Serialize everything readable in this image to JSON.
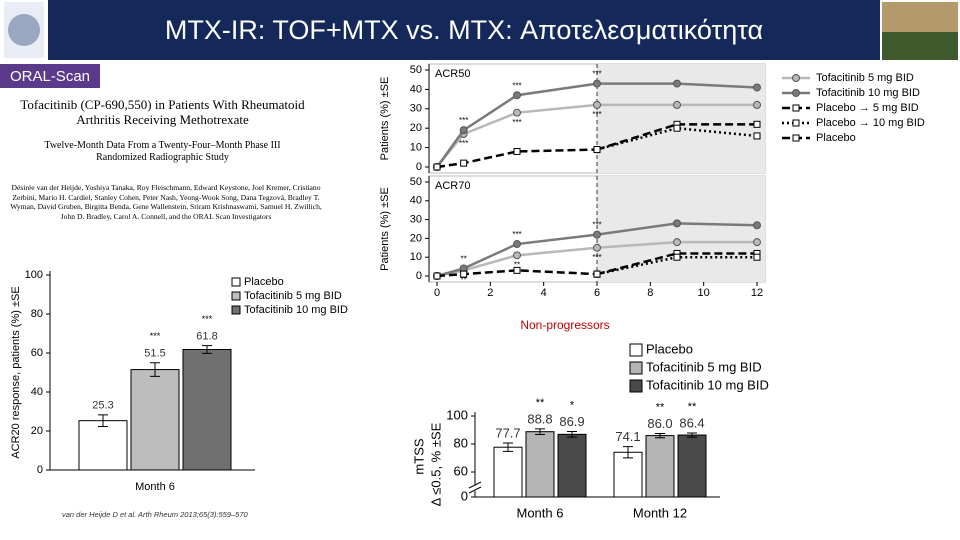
{
  "header": {
    "title": "MTX-IR: TOF+MTX vs. MTX: Αποτελεσματικότητα",
    "tag": "ORAL-Scan"
  },
  "paper": {
    "title": "Tofacitinib (CP-690,550) in Patients With Rheumatoid Arthritis Receiving Methotrexate",
    "subtitle": "Twelve-Month Data From a Twenty-Four–Month Phase III Randomized Radiographic Study",
    "authors": "Désirée van der Heijde, Yoshiya Tanaka, Roy Fleischmann, Edward Keystone, Joel Kremer, Cristiano Zerbini, Mario H. Cardiel, Stanley Cohen, Peter Nash, Yeong-Wook Song, Dana Tegzová, Bradley T. Wyman, David Gruben, Birgitta Benda, Gene Wallenstein, Sriram Krishnaswami, Samuel H. Zwillich, John D. Bradley, Carol A. Connell, and the ORAL Scan Investigators",
    "citation": "van der Heijde D et al. Arth Rheum 2013;65(3):559–570"
  },
  "chart_data": [
    {
      "type": "line",
      "title": "ACR50",
      "y_label": "Patients (%) ±SE",
      "x": [
        0,
        1,
        3,
        6,
        9,
        12
      ],
      "xlim": [
        0,
        12
      ],
      "ylim": [
        0,
        50
      ],
      "yticks": [
        0,
        10,
        20,
        30,
        40,
        50
      ],
      "shaded_x": [
        6,
        12
      ],
      "legend": true,
      "series": [
        {
          "name": "Tofacitinib 5 mg BID",
          "color": "#b8b8b8",
          "dash": "solid",
          "marker": "circle",
          "values": [
            0,
            17,
            28,
            32,
            32,
            32
          ],
          "sig": [
            null,
            "***",
            "***",
            "***",
            null,
            null
          ]
        },
        {
          "name": "Tofacitinib 10 mg BID",
          "color": "#7a7a7a",
          "dash": "solid",
          "marker": "circle",
          "values": [
            0,
            19,
            37,
            43,
            43,
            41
          ],
          "sig": [
            null,
            "***",
            "***",
            "***",
            null,
            null
          ]
        },
        {
          "name": "Placebo → 5 mg BID",
          "color": "#000000",
          "dash": "dashed",
          "marker": "square",
          "values": [
            null,
            null,
            null,
            9,
            22,
            22
          ]
        },
        {
          "name": "Placebo → 10 mg BID",
          "color": "#000000",
          "dash": "dotted",
          "marker": "square",
          "values": [
            null,
            null,
            null,
            9,
            20,
            16
          ]
        },
        {
          "name": "Placebo",
          "color": "#000000",
          "dash": "dashed",
          "marker": "square",
          "values": [
            0,
            2,
            8,
            9,
            null,
            null
          ]
        }
      ]
    },
    {
      "type": "line",
      "title": "ACR70",
      "y_label": "Patients (%) ±SE",
      "x": [
        0,
        1,
        3,
        6,
        9,
        12
      ],
      "xlim": [
        0,
        12
      ],
      "xticks": [
        0,
        2,
        4,
        6,
        8,
        10,
        12
      ],
      "ylim": [
        0,
        50
      ],
      "yticks": [
        0,
        10,
        20,
        30,
        40,
        50
      ],
      "shaded_x": [
        6,
        12
      ],
      "legend": false,
      "series": [
        {
          "name": "Tofacitinib 5 mg BID",
          "color": "#b8b8b8",
          "dash": "solid",
          "marker": "circle",
          "values": [
            0,
            3,
            11,
            15,
            18,
            18
          ],
          "sig": [
            null,
            "**",
            "**",
            "***",
            null,
            null
          ]
        },
        {
          "name": "Tofacitinib 10 mg BID",
          "color": "#7a7a7a",
          "dash": "solid",
          "marker": "circle",
          "values": [
            0,
            4,
            17,
            22,
            28,
            27
          ],
          "sig": [
            null,
            "**",
            "***",
            "***",
            null,
            null
          ]
        },
        {
          "name": "Placebo → 5 mg BID",
          "color": "#000000",
          "dash": "dashed",
          "marker": "square",
          "values": [
            null,
            null,
            null,
            1,
            12,
            12
          ]
        },
        {
          "name": "Placebo → 10 mg BID",
          "color": "#000000",
          "dash": "dotted",
          "marker": "square",
          "values": [
            null,
            null,
            null,
            1,
            10,
            10
          ]
        },
        {
          "name": "Placebo",
          "color": "#000000",
          "dash": "dashed",
          "marker": "square",
          "values": [
            0,
            1,
            3,
            1,
            null,
            null
          ]
        }
      ]
    },
    {
      "type": "bar",
      "y_label": "ACR20 response, patients (%) ±SE",
      "categories": [
        "Month 6"
      ],
      "ylim": [
        0,
        100
      ],
      "yticks": [
        0,
        20,
        40,
        60,
        80,
        100
      ],
      "legend": true,
      "series": [
        {
          "name": "Placebo",
          "color": "#ffffff",
          "values": [
            25.3
          ],
          "errors": [
            3
          ],
          "sig": [
            null
          ]
        },
        {
          "name": "Tofacitinib 5 mg BID",
          "color": "#bdbdbd",
          "values": [
            51.5
          ],
          "errors": [
            3.5
          ],
          "sig": [
            "***"
          ]
        },
        {
          "name": "Tofacitinib 10 mg BID",
          "color": "#707070",
          "values": [
            61.8
          ],
          "errors": [
            2
          ],
          "sig": [
            "***"
          ]
        }
      ]
    },
    {
      "type": "bar",
      "title": "Non-progressors",
      "y_label": "mTSS",
      "y_label_2": "Δ ≤0.5, % ±SE",
      "categories": [
        "Month 6",
        "Month 12"
      ],
      "ylim": [
        0,
        100
      ],
      "yticks": [
        0,
        60,
        80,
        100
      ],
      "axis_break": [
        0,
        55
      ],
      "legend": true,
      "series": [
        {
          "name": "Placebo",
          "color": "#ffffff",
          "values": [
            77.7,
            74.1
          ],
          "errors": [
            3,
            4
          ],
          "sig": [
            null,
            null
          ]
        },
        {
          "name": "Tofacitinib 5 mg BID",
          "color": "#b5b5b5",
          "values": [
            88.8,
            86.0
          ],
          "value_labels": [
            "88.8",
            "86.0"
          ],
          "errors": [
            2,
            1.5
          ],
          "sig": [
            "**",
            "**"
          ]
        },
        {
          "name": "Tofacitinib 10 mg BID",
          "color": "#4a4a4a",
          "values": [
            86.9,
            86.4
          ],
          "errors": [
            2,
            1.5
          ],
          "sig": [
            "*",
            "**"
          ]
        }
      ]
    }
  ]
}
